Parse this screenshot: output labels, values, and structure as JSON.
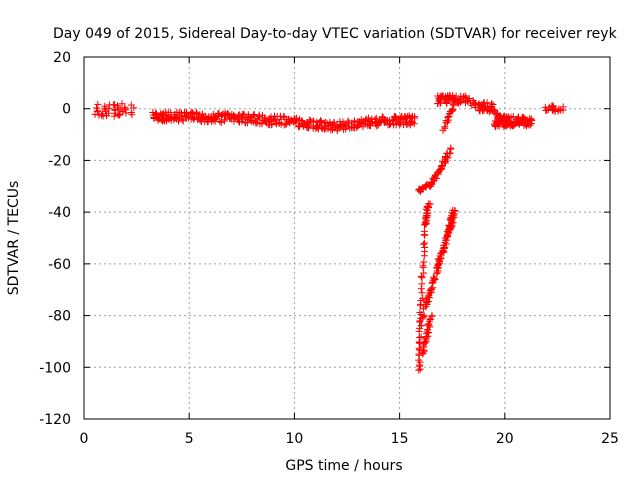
{
  "chart_data": {
    "type": "scatter",
    "title": "Day 049 of 2015, Sidereal Day-to-day VTEC variation (SDTVAR) for receiver reyk",
    "xlabel": "GPS time / hours",
    "ylabel": "SDTVAR / TECUs",
    "xlim": [
      0,
      25
    ],
    "ylim": [
      -120,
      20
    ],
    "xticks": [
      0,
      5,
      10,
      15,
      20,
      25
    ],
    "yticks": [
      -120,
      -100,
      -80,
      -60,
      -40,
      -20,
      0,
      20
    ],
    "grid": true,
    "marker": "+",
    "series_color": "#ff0000",
    "segments": [
      {
        "name": "early-scatter",
        "x_range": [
          0.5,
          2.4
        ],
        "y_center": -0.5,
        "y_spread": 2.5,
        "count": 40
      },
      {
        "name": "main-band",
        "x_range": [
          3.3,
          15.7
        ],
        "points": [
          [
            3.3,
            -3
          ],
          [
            4.0,
            -3
          ],
          [
            5.0,
            -3
          ],
          [
            6.0,
            -3.5
          ],
          [
            7.0,
            -3.5
          ],
          [
            8.0,
            -4
          ],
          [
            9.0,
            -4.5
          ],
          [
            10.0,
            -5
          ],
          [
            11.0,
            -6
          ],
          [
            12.0,
            -7
          ],
          [
            13.0,
            -5.5
          ],
          [
            14.0,
            -5
          ],
          [
            15.0,
            -4.5
          ],
          [
            15.7,
            -4.5
          ]
        ],
        "spread": 1.8,
        "count": 420
      },
      {
        "name": "upper-diagonal",
        "points": [
          [
            15.9,
            -32
          ],
          [
            16.5,
            -29
          ],
          [
            17.0,
            -23
          ],
          [
            17.4,
            -16
          ]
        ],
        "spread": 0.8,
        "count": 60
      },
      {
        "name": "left-vertical",
        "points": [
          [
            16.4,
            -36
          ],
          [
            16.2,
            -45
          ],
          [
            16.0,
            -80
          ],
          [
            15.95,
            -102
          ]
        ],
        "spread": 1.0,
        "count": 70
      },
      {
        "name": "main-diagonal",
        "points": [
          [
            16.1,
            -80
          ],
          [
            16.8,
            -62
          ],
          [
            17.3,
            -48
          ],
          [
            17.6,
            -40
          ]
        ],
        "spread": 1.5,
        "count": 110
      },
      {
        "name": "lower-vertical",
        "points": [
          [
            16.5,
            -80
          ],
          [
            16.3,
            -88
          ],
          [
            16.1,
            -95
          ]
        ],
        "spread": 0.6,
        "count": 30
      },
      {
        "name": "spike-up",
        "points": [
          [
            17.1,
            -8
          ],
          [
            17.4,
            -2
          ],
          [
            17.6,
            2
          ]
        ],
        "spread": 0.8,
        "count": 20
      },
      {
        "name": "top-cluster",
        "x_range": [
          16.8,
          18.3
        ],
        "y_center": 3.5,
        "y_spread": 1.6,
        "count": 60
      },
      {
        "name": "descent",
        "points": [
          [
            18.3,
            3
          ],
          [
            18.8,
            0
          ],
          [
            19.2,
            0
          ],
          [
            19.6,
            -2
          ],
          [
            19.9,
            -5
          ]
        ],
        "spread": 1.2,
        "count": 40
      },
      {
        "name": "bump",
        "x_range": [
          18.7,
          19.5
        ],
        "y_center": 1.5,
        "y_spread": 1.2,
        "count": 15
      },
      {
        "name": "right-cluster",
        "x_range": [
          19.5,
          21.3
        ],
        "y_center": -5,
        "y_spread": 2.0,
        "count": 110
      },
      {
        "name": "far-right",
        "x_range": [
          21.9,
          22.8
        ],
        "y_center": 0,
        "y_spread": 1.2,
        "count": 20
      }
    ]
  }
}
